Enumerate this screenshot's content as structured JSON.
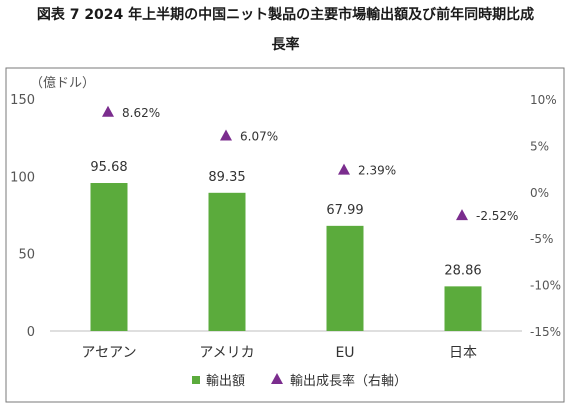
{
  "title_lines": [
    "図表 7 2024 年上半期の中国ニット製品の主要市場輸出額及び前年同時期比成",
    "長率"
  ],
  "chart_data": {
    "type": "bar",
    "categories": [
      "アセアン",
      "アメリカ",
      "EU",
      "日本"
    ],
    "series": [
      {
        "name": "輸出額",
        "kind": "bar",
        "axis": "left",
        "color": "#5bab3c",
        "values": [
          95.68,
          89.35,
          67.99,
          28.86
        ],
        "labels": [
          "95.68",
          "89.35",
          "67.99",
          "28.86"
        ]
      },
      {
        "name": "輸出成長率（右軸）",
        "kind": "marker",
        "marker": "triangle",
        "axis": "right",
        "color": "#7b2d8e",
        "values": [
          8.62,
          6.07,
          2.39,
          -2.52
        ],
        "labels": [
          "8.62%",
          "6.07%",
          "2.39%",
          "-2.52%"
        ]
      }
    ],
    "left_axis": {
      "unit_label": "（億ドル）",
      "ylim": [
        0,
        150
      ],
      "ticks": [
        0,
        50,
        100,
        150
      ],
      "tick_labels": [
        "0",
        "50",
        "100",
        "150"
      ]
    },
    "right_axis": {
      "ylim": [
        -15,
        10
      ],
      "ticks": [
        10,
        5,
        0,
        -5,
        -10,
        -15
      ],
      "tick_labels": [
        "10%",
        "5%",
        "0%",
        "-5%",
        "-10%",
        "-15%"
      ]
    },
    "grid": false,
    "legend_position": "bottom"
  }
}
